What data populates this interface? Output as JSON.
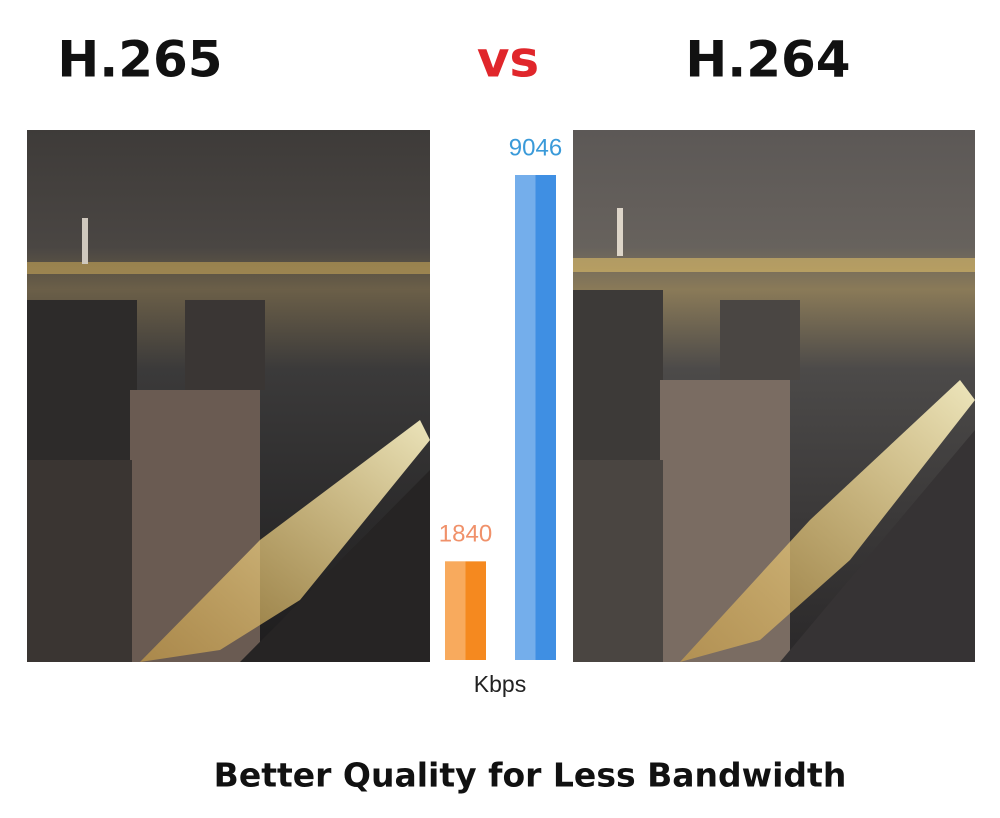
{
  "chart_data": {
    "type": "bar",
    "title": "Better Quality for Less Bandwidth",
    "categories": [
      "H.265",
      "H.264"
    ],
    "annotation": "vs",
    "xlabel": "Kbps",
    "values": [
      1840,
      9046
    ],
    "colors": [
      "#f5891f",
      "#3f8fe3"
    ],
    "label_colors": [
      "#f0916a",
      "#3a9ad9"
    ],
    "annotation_color": "#e0262b"
  }
}
